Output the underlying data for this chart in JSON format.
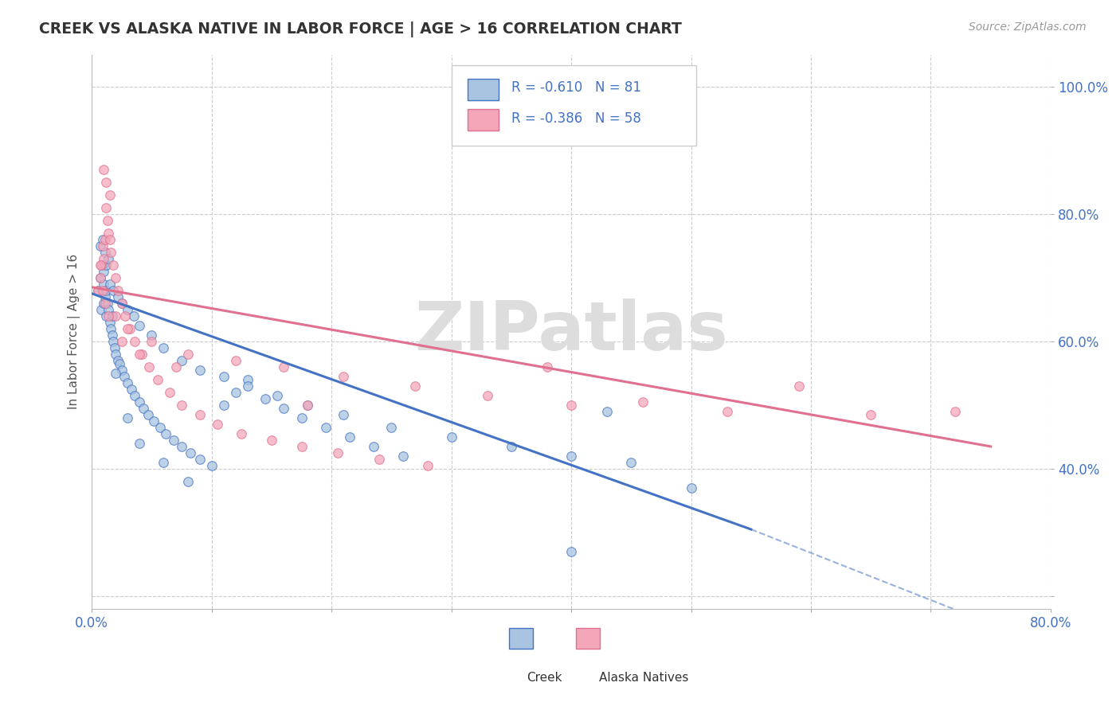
{
  "title": "CREEK VS ALASKA NATIVE IN LABOR FORCE | AGE > 16 CORRELATION CHART",
  "source": "Source: ZipAtlas.com",
  "ylabel": "In Labor Force | Age > 16",
  "xlim": [
    0.0,
    0.8
  ],
  "ylim": [
    0.18,
    1.05
  ],
  "xticks": [
    0.0,
    0.1,
    0.2,
    0.3,
    0.4,
    0.5,
    0.6,
    0.7,
    0.8
  ],
  "xticklabels": [
    "0.0%",
    "",
    "",
    "",
    "",
    "",
    "",
    "",
    "80.0%"
  ],
  "yticks": [
    0.2,
    0.4,
    0.6,
    0.8,
    1.0
  ],
  "yticklabels": [
    "",
    "40.0%",
    "60.0%",
    "80.0%",
    "100.0%"
  ],
  "creek_R": -0.61,
  "creek_N": 81,
  "alaska_R": -0.386,
  "alaska_N": 58,
  "creek_color": "#a8c4e0",
  "alaska_color": "#f4a7b9",
  "creek_line_color": "#4472c4",
  "alaska_line_color": "#e07090",
  "watermark_text": "ZIPatlas",
  "creek_reg": [
    0.0,
    0.55,
    0.675,
    0.305
  ],
  "creek_dash": [
    0.55,
    0.8,
    0.305,
    0.12
  ],
  "alaska_reg": [
    0.0,
    0.75,
    0.685,
    0.435
  ],
  "creek_scatter_x": [
    0.005,
    0.007,
    0.008,
    0.009,
    0.01,
    0.01,
    0.011,
    0.012,
    0.012,
    0.013,
    0.014,
    0.015,
    0.016,
    0.017,
    0.018,
    0.019,
    0.02,
    0.022,
    0.023,
    0.025,
    0.027,
    0.03,
    0.033,
    0.036,
    0.04,
    0.043,
    0.047,
    0.052,
    0.057,
    0.062,
    0.068,
    0.075,
    0.082,
    0.09,
    0.1,
    0.11,
    0.12,
    0.13,
    0.145,
    0.16,
    0.175,
    0.195,
    0.215,
    0.235,
    0.26,
    0.01,
    0.012,
    0.015,
    0.018,
    0.022,
    0.025,
    0.03,
    0.035,
    0.04,
    0.05,
    0.06,
    0.075,
    0.09,
    0.11,
    0.13,
    0.155,
    0.18,
    0.21,
    0.25,
    0.3,
    0.35,
    0.4,
    0.45,
    0.5,
    0.43,
    0.007,
    0.009,
    0.011,
    0.014,
    0.017,
    0.02,
    0.03,
    0.04,
    0.06,
    0.08,
    0.4
  ],
  "creek_scatter_y": [
    0.68,
    0.7,
    0.65,
    0.72,
    0.66,
    0.69,
    0.67,
    0.64,
    0.68,
    0.66,
    0.65,
    0.63,
    0.62,
    0.61,
    0.6,
    0.59,
    0.58,
    0.57,
    0.565,
    0.555,
    0.545,
    0.535,
    0.525,
    0.515,
    0.505,
    0.495,
    0.485,
    0.475,
    0.465,
    0.455,
    0.445,
    0.435,
    0.425,
    0.415,
    0.405,
    0.5,
    0.52,
    0.54,
    0.51,
    0.495,
    0.48,
    0.465,
    0.45,
    0.435,
    0.42,
    0.71,
    0.72,
    0.69,
    0.68,
    0.67,
    0.66,
    0.65,
    0.64,
    0.625,
    0.61,
    0.59,
    0.57,
    0.555,
    0.545,
    0.53,
    0.515,
    0.5,
    0.485,
    0.465,
    0.45,
    0.435,
    0.42,
    0.41,
    0.37,
    0.49,
    0.75,
    0.76,
    0.74,
    0.73,
    0.64,
    0.55,
    0.48,
    0.44,
    0.41,
    0.38,
    0.27
  ],
  "alaska_scatter_x": [
    0.005,
    0.007,
    0.008,
    0.009,
    0.01,
    0.011,
    0.012,
    0.013,
    0.014,
    0.015,
    0.016,
    0.018,
    0.02,
    0.022,
    0.025,
    0.028,
    0.032,
    0.036,
    0.042,
    0.048,
    0.055,
    0.065,
    0.075,
    0.09,
    0.105,
    0.125,
    0.15,
    0.175,
    0.205,
    0.24,
    0.28,
    0.01,
    0.012,
    0.015,
    0.02,
    0.03,
    0.05,
    0.08,
    0.12,
    0.16,
    0.21,
    0.27,
    0.33,
    0.4,
    0.46,
    0.53,
    0.59,
    0.65,
    0.72,
    0.007,
    0.009,
    0.011,
    0.014,
    0.025,
    0.04,
    0.07,
    0.18,
    0.38
  ],
  "alaska_scatter_y": [
    0.68,
    0.7,
    0.72,
    0.75,
    0.73,
    0.76,
    0.81,
    0.79,
    0.77,
    0.76,
    0.74,
    0.72,
    0.7,
    0.68,
    0.66,
    0.64,
    0.62,
    0.6,
    0.58,
    0.56,
    0.54,
    0.52,
    0.5,
    0.485,
    0.47,
    0.455,
    0.445,
    0.435,
    0.425,
    0.415,
    0.405,
    0.87,
    0.85,
    0.83,
    0.64,
    0.62,
    0.6,
    0.58,
    0.57,
    0.56,
    0.545,
    0.53,
    0.515,
    0.5,
    0.505,
    0.49,
    0.53,
    0.485,
    0.49,
    0.72,
    0.68,
    0.66,
    0.64,
    0.6,
    0.58,
    0.56,
    0.5,
    0.56
  ]
}
